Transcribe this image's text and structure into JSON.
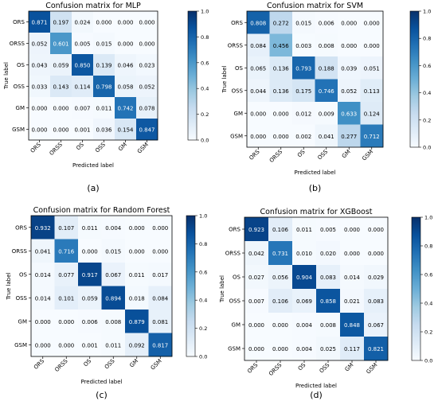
{
  "chart_data": [
    {
      "type": "heatmap",
      "title": "Confusion matrix for MLP",
      "xlabel": "Predicted label",
      "ylabel": "True label",
      "panel_label": "(a)",
      "rows": [
        "ORS",
        "ORSS",
        "OS",
        "OSS",
        "GM",
        "GSM"
      ],
      "cols": [
        "ORS",
        "ORSS",
        "OS",
        "OSS",
        "GM",
        "GSM"
      ],
      "values": [
        [
          "0.871",
          "0.197",
          "0.024",
          "0.000",
          "0.000",
          "0.000"
        ],
        [
          "0.052",
          "0.601",
          "0.005",
          "0.015",
          "0.000",
          "0.000"
        ],
        [
          "0.043",
          "0.059",
          "0.850",
          "0.139",
          "0.046",
          "0.023"
        ],
        [
          "0.033",
          "0.143",
          "0.114",
          "0.798",
          "0.058",
          "0.052"
        ],
        [
          "0.000",
          "0.000",
          "0.007",
          "0.011",
          "0.742",
          "0.078"
        ],
        [
          "0.000",
          "0.000",
          "0.001",
          "0.036",
          "0.154",
          "0.847"
        ]
      ],
      "colorbar": {
        "min": 0,
        "max": 1,
        "ticks": [
          "0.0",
          "0.2",
          "0.4",
          "0.6",
          "0.8",
          "1.0"
        ]
      }
    },
    {
      "type": "heatmap",
      "title": "Confusion matrix for SVM",
      "xlabel": "Predicted label",
      "ylabel": "True label",
      "panel_label": "(b)",
      "rows": [
        "ORS",
        "ORSS",
        "OS",
        "OSS",
        "GM",
        "GSM"
      ],
      "cols": [
        "ORS",
        "ORSS",
        "OS",
        "OSS",
        "GM",
        "GSM"
      ],
      "values": [
        [
          "0.808",
          "0.272",
          "0.015",
          "0.006",
          "0.000",
          "0.000"
        ],
        [
          "0.084",
          "0.456",
          "0.003",
          "0.008",
          "0.000",
          "0.000"
        ],
        [
          "0.065",
          "0.136",
          "0.793",
          "0.188",
          "0.039",
          "0.051"
        ],
        [
          "0.044",
          "0.136",
          "0.175",
          "0.746",
          "0.052",
          "0.113"
        ],
        [
          "0.000",
          "0.000",
          "0.012",
          "0.009",
          "0.633",
          "0.124"
        ],
        [
          "0.000",
          "0.000",
          "0.002",
          "0.041",
          "0.277",
          "0.712"
        ]
      ],
      "colorbar": {
        "min": 0,
        "max": 1,
        "ticks": [
          "0.0",
          "0.2",
          "0.4",
          "0.6",
          "0.8",
          "1.0"
        ]
      }
    },
    {
      "type": "heatmap",
      "title": "Confusion matrix for Random Forest",
      "xlabel": "Predicted label",
      "ylabel": "True label",
      "panel_label": "(c)",
      "rows": [
        "ORS",
        "ORSS",
        "OS",
        "OSS",
        "GM",
        "GSM"
      ],
      "cols": [
        "ORS",
        "ORSS",
        "OS",
        "OSS",
        "GM",
        "GSM"
      ],
      "values": [
        [
          "0.932",
          "0.107",
          "0.011",
          "0.004",
          "0.000",
          "0.000"
        ],
        [
          "0.041",
          "0.716",
          "0.000",
          "0.015",
          "0.000",
          "0.000"
        ],
        [
          "0.014",
          "0.077",
          "0.917",
          "0.067",
          "0.011",
          "0.017"
        ],
        [
          "0.014",
          "0.101",
          "0.059",
          "0.894",
          "0.018",
          "0.084"
        ],
        [
          "0.000",
          "0.000",
          "0.006",
          "0.008",
          "0.879",
          "0.081"
        ],
        [
          "0.000",
          "0.000",
          "0.001",
          "0.011",
          "0.092",
          "0.817"
        ]
      ],
      "colorbar": {
        "min": 0,
        "max": 1,
        "ticks": [
          "0.0",
          "0.2",
          "0.4",
          "0.6",
          "0.8",
          "1.0"
        ]
      }
    },
    {
      "type": "heatmap",
      "title": "Confusion matrix for XGBoost",
      "xlabel": "Predicted label",
      "ylabel": "True label",
      "panel_label": "(d)",
      "rows": [
        "ORS",
        "ORSS",
        "OS",
        "OSS",
        "GM",
        "GSM"
      ],
      "cols": [
        "ORS",
        "ORSS",
        "OS",
        "OSS",
        "GM",
        "GSM"
      ],
      "values": [
        [
          "0.923",
          "0.106",
          "0.011",
          "0.005",
          "0.000",
          "0.000"
        ],
        [
          "0.042",
          "0.731",
          "0.010",
          "0.020",
          "0.000",
          "0.000"
        ],
        [
          "0.027",
          "0.056",
          "0.904",
          "0.083",
          "0.014",
          "0.029"
        ],
        [
          "0.007",
          "0.106",
          "0.069",
          "0.858",
          "0.021",
          "0.083"
        ],
        [
          "0.000",
          "0.000",
          "0.004",
          "0.008",
          "0.848",
          "0.067"
        ],
        [
          "0.000",
          "0.000",
          "0.004",
          "0.025",
          "0.117",
          "0.821"
        ]
      ],
      "colorbar": {
        "min": 0,
        "max": 1,
        "ticks": [
          "0.0",
          "0.2",
          "0.4",
          "0.6",
          "0.8",
          "1.0"
        ]
      }
    }
  ],
  "colormap": {
    "low": "#f7fbff",
    "high": "#08306b"
  }
}
